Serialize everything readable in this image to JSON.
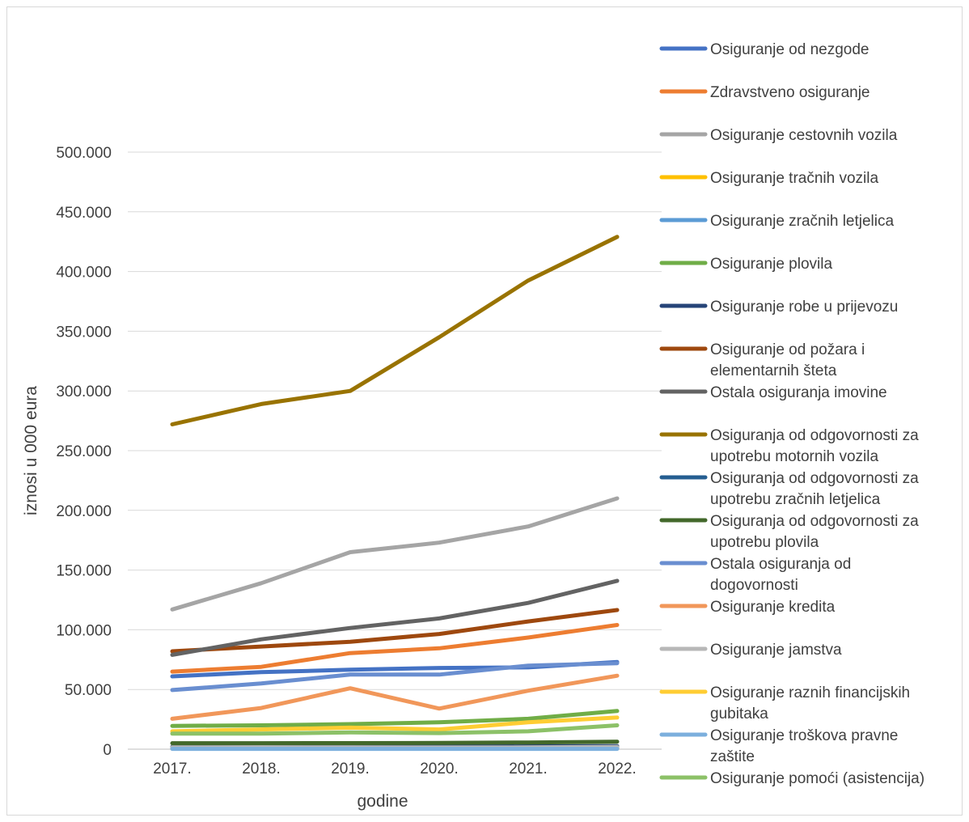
{
  "chart_data": {
    "type": "line",
    "title": "",
    "xlabel": "godine",
    "ylabel": "iznosi u 000 eura",
    "categories": [
      "2017.",
      "2018.",
      "2019.",
      "2020.",
      "2021.",
      "2022."
    ],
    "ylim": [
      0,
      500000
    ],
    "yticks": [
      0,
      50000,
      100000,
      150000,
      200000,
      250000,
      300000,
      350000,
      400000,
      450000,
      500000
    ],
    "ytick_labels": [
      "0",
      "50.000",
      "100.000",
      "150.000",
      "200.000",
      "250.000",
      "300.000",
      "350.000",
      "400.000",
      "450.000",
      "500.000"
    ],
    "grid": true,
    "legend_position": "right",
    "series": [
      {
        "name": "Osiguranje od nezgode",
        "color": "#4472c4",
        "values": [
          61000,
          64500,
          66500,
          68000,
          68500,
          73000
        ]
      },
      {
        "name": "Zdravstveno osiguranje",
        "color": "#ed7d31",
        "values": [
          65000,
          69000,
          80500,
          84500,
          93500,
          104000
        ]
      },
      {
        "name": "Osiguranje cestovnih vozila",
        "color": "#a5a5a5",
        "values": [
          117000,
          139000,
          165000,
          173000,
          186500,
          210000
        ]
      },
      {
        "name": "Osiguranje tračnih vozila",
        "color": "#ffc000",
        "values": [
          500,
          500,
          600,
          600,
          700,
          700
        ]
      },
      {
        "name": "Osiguranje zračnih letjelica",
        "color": "#5b9bd5",
        "values": [
          1000,
          1100,
          1200,
          1200,
          1300,
          1500
        ]
      },
      {
        "name": "Osiguranje plovila",
        "color": "#70ad47",
        "values": [
          19500,
          20000,
          21000,
          22500,
          25500,
          32000
        ]
      },
      {
        "name": "Osiguranje robe u prijevozu",
        "color": "#264478",
        "values": [
          2000,
          2100,
          2200,
          2100,
          2400,
          2600
        ]
      },
      {
        "name": "Osiguranje od požara i elementarnih šteta",
        "color": "#9e480e",
        "values": [
          82000,
          86000,
          90000,
          96500,
          107000,
          116500
        ]
      },
      {
        "name": "Ostala osiguranja imovine",
        "color": "#636363",
        "values": [
          79000,
          92000,
          101500,
          109500,
          122500,
          141000
        ]
      },
      {
        "name": "Osiguranja od odgovornosti za upotrebu motornih vozila",
        "color": "#997300",
        "values": [
          272000,
          289000,
          300000,
          345000,
          392500,
          429000
        ]
      },
      {
        "name": "Osiguranja od odgovornosti za upotrebu zračnih letjelica",
        "color": "#255e91",
        "values": [
          500,
          500,
          500,
          500,
          600,
          600
        ]
      },
      {
        "name": "Osiguranja od odgovornosti za upotrebu plovila",
        "color": "#43682b",
        "values": [
          5000,
          5000,
          5100,
          5200,
          5600,
          6300
        ]
      },
      {
        "name": "Ostala osiguranja od dogovornosti",
        "color": "#698ed0",
        "values": [
          49500,
          55000,
          62500,
          62500,
          70000,
          72000
        ]
      },
      {
        "name": "Osiguranje kredita",
        "color": "#f1975a",
        "values": [
          25500,
          34500,
          51000,
          34000,
          49000,
          61500
        ]
      },
      {
        "name": "Osiguranje jamstva",
        "color": "#b7b7b7",
        "values": [
          1500,
          1600,
          1500,
          1400,
          1500,
          1800
        ]
      },
      {
        "name": "Osiguranje raznih financijskih gubitaka",
        "color": "#ffcd33",
        "values": [
          15000,
          16500,
          18000,
          16500,
          22500,
          26500
        ]
      },
      {
        "name": "Osiguranje troškova pravne zaštite",
        "color": "#7cafdd",
        "values": [
          300,
          300,
          300,
          300,
          300,
          300
        ]
      },
      {
        "name": "Osiguranje pomoći (asistencija)",
        "color": "#8cc168",
        "values": [
          13000,
          13000,
          14000,
          13500,
          15000,
          20000
        ]
      }
    ],
    "legend_display": [
      [
        "Osiguranje od nezgode"
      ],
      [
        "Zdravstveno osiguranje"
      ],
      [
        "Osiguranje cestovnih vozila"
      ],
      [
        "Osiguranje tračnih vozila"
      ],
      [
        "Osiguranje zračnih letjelica"
      ],
      [
        "Osiguranje plovila"
      ],
      [
        "Osiguranje robe u prijevozu"
      ],
      [
        "Osiguranje od požara i",
        "elementarnih šteta"
      ],
      [
        "Ostala osiguranja imovine"
      ],
      [
        "Osiguranja od odgovornosti za",
        "upotrebu motornih vozila"
      ],
      [
        "Osiguranja od odgovornosti za",
        "upotrebu zračnih letjelica"
      ],
      [
        "Osiguranja od odgovornosti za",
        "upotrebu plovila"
      ],
      [
        "Ostala osiguranja od",
        "dogovornosti"
      ],
      [
        "Osiguranje kredita"
      ],
      [
        "Osiguranje jamstva"
      ],
      [
        "Osiguranje raznih financijskih",
        "gubitaka"
      ],
      [
        "Osiguranje troškova pravne",
        "zaštite"
      ],
      [
        "Osiguranje pomoći (asistencija)"
      ]
    ]
  }
}
